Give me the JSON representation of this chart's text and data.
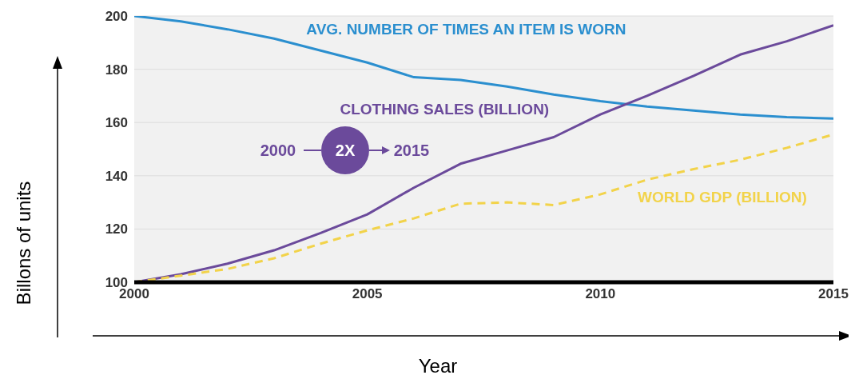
{
  "chart_data": {
    "type": "line",
    "xlabel": "Year",
    "ylabel": "Billons of units",
    "x": [
      2000,
      2001,
      2002,
      2003,
      2004,
      2005,
      2006,
      2007,
      2008,
      2009,
      2010,
      2011,
      2012,
      2013,
      2014,
      2015
    ],
    "xlim": [
      2000,
      2015
    ],
    "xticks": [
      2000,
      2005,
      2010,
      2015
    ],
    "ylim": [
      100,
      200
    ],
    "yticks": [
      100,
      120,
      140,
      160,
      180,
      200
    ],
    "grid": "y",
    "marker": "none",
    "series": [
      {
        "name": "AVG. NUMBER OF TIMES AN ITEM IS WORN",
        "color": "#2b8fcf",
        "line_style": "solid",
        "values": [
          200,
          198,
          195,
          191.5,
          187,
          182.5,
          177,
          176,
          173.5,
          170.5,
          168,
          166,
          164.5,
          163,
          162,
          161.5
        ]
      },
      {
        "name": "CLOTHING SALES (BILLION)",
        "color": "#6b4a9b",
        "line_style": "solid",
        "values": [
          100,
          103,
          107,
          112,
          118.5,
          125.5,
          135.5,
          144.5,
          149.5,
          154.5,
          163,
          170,
          177.5,
          185.5,
          190.5,
          196.5
        ]
      },
      {
        "name": "WORLD GDP (BILLION)",
        "color": "#f2d34a",
        "line_style": "dashed",
        "values": [
          100,
          102.5,
          105,
          109,
          114.5,
          119.5,
          124,
          129.5,
          130,
          129,
          133,
          138.5,
          142.5,
          146,
          150.5,
          155.5
        ]
      }
    ],
    "annotations": [
      "2000",
      "2X",
      "2015"
    ]
  }
}
